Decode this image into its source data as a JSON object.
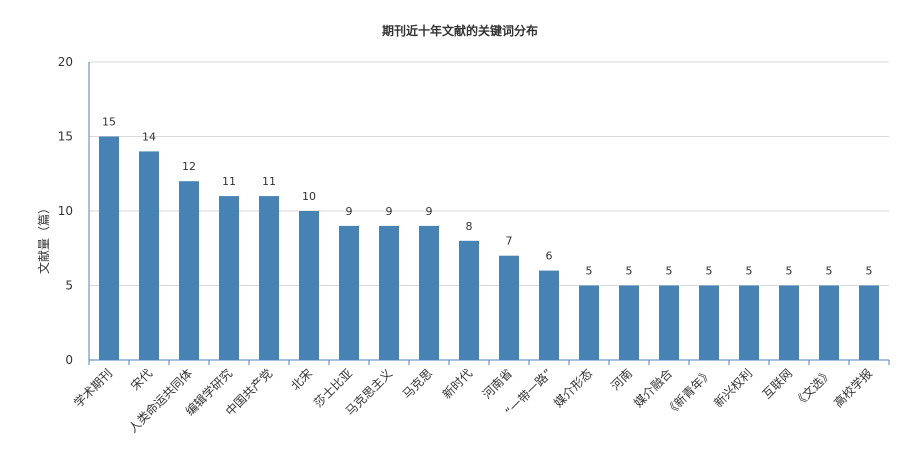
{
  "chart_data": {
    "type": "bar",
    "title": "期刊近十年文献的关键词分布",
    "xlabel": "",
    "ylabel": "文献量（篇）",
    "ylim": [
      0,
      20
    ],
    "yticks": [
      0,
      5,
      10,
      15,
      20
    ],
    "grid": true,
    "legend": "none",
    "categories": [
      "学术期刊",
      "宋代",
      "人类命运共同体",
      "编辑学研究",
      "中国共产党",
      "北宋",
      "莎士比亚",
      "马克思主义",
      "马克思",
      "新时代",
      "河南省",
      "“一带一路”",
      "媒介形态",
      "河南",
      "媒介融合",
      "《新青年》",
      "新兴权利",
      "互联网",
      "《文选》",
      "高校学报"
    ],
    "values": [
      15,
      14,
      12,
      11,
      11,
      10,
      9,
      9,
      9,
      8,
      7,
      6,
      5,
      5,
      5,
      5,
      5,
      5,
      5,
      5
    ],
    "colors": {
      "bar": "#4682B4",
      "axis": "#4F81BD",
      "grid": "#D9D9D9"
    }
  }
}
